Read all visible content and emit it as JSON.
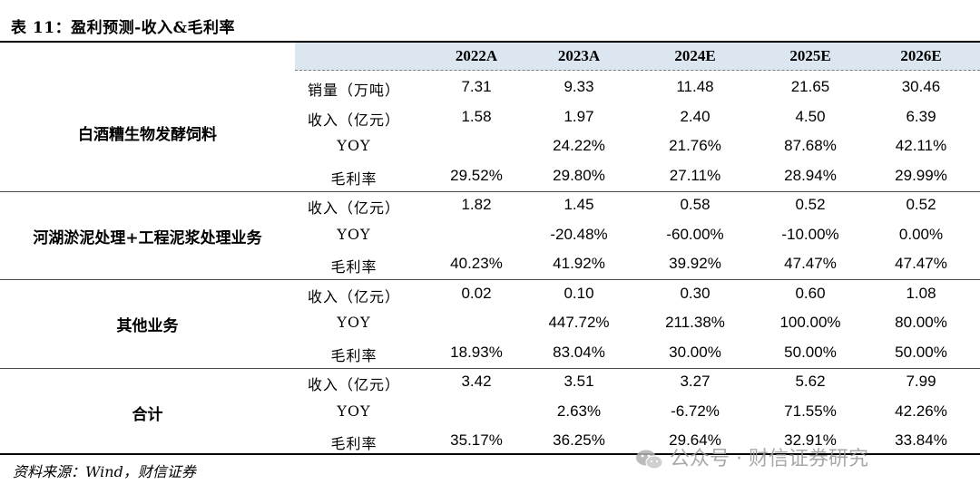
{
  "title": "表 11：盈利预测-收入&毛利率",
  "columns": [
    "2022A",
    "2023A",
    "2024E",
    "2025E",
    "2026E"
  ],
  "segments": [
    {
      "name": "白酒糟生物发酵饲料",
      "rows": [
        {
          "metric": "销量（万吨）",
          "values": [
            "7.31",
            "9.33",
            "11.48",
            "21.65",
            "30.46"
          ]
        },
        {
          "metric": "收入（亿元）",
          "values": [
            "1.58",
            "1.97",
            "2.40",
            "4.50",
            "6.39"
          ]
        },
        {
          "metric": "YOY",
          "values": [
            "",
            "24.22%",
            "21.76%",
            "87.68%",
            "42.11%"
          ]
        },
        {
          "metric": "毛利率",
          "values": [
            "29.52%",
            "29.80%",
            "27.11%",
            "28.94%",
            "29.99%"
          ]
        }
      ]
    },
    {
      "name": "河湖淤泥处理+工程泥浆处理业务",
      "rows": [
        {
          "metric": "收入（亿元）",
          "values": [
            "1.82",
            "1.45",
            "0.58",
            "0.52",
            "0.52"
          ]
        },
        {
          "metric": "YOY",
          "values": [
            "",
            "-20.48%",
            "-60.00%",
            "-10.00%",
            "0.00%"
          ]
        },
        {
          "metric": "毛利率",
          "values": [
            "40.23%",
            "41.92%",
            "39.92%",
            "47.47%",
            "47.47%"
          ]
        }
      ]
    },
    {
      "name": "其他业务",
      "rows": [
        {
          "metric": "收入（亿元）",
          "values": [
            "0.02",
            "0.10",
            "0.30",
            "0.60",
            "1.08"
          ]
        },
        {
          "metric": "YOY",
          "values": [
            "",
            "447.72%",
            "211.38%",
            "100.00%",
            "80.00%"
          ]
        },
        {
          "metric": "毛利率",
          "values": [
            "18.93%",
            "83.04%",
            "30.00%",
            "50.00%",
            "50.00%"
          ]
        }
      ]
    },
    {
      "name": "合计",
      "rows": [
        {
          "metric": "收入（亿元）",
          "values": [
            "3.42",
            "3.51",
            "3.27",
            "5.62",
            "7.99"
          ]
        },
        {
          "metric": "YOY",
          "values": [
            "",
            "2.63%",
            "-6.72%",
            "71.55%",
            "42.26%"
          ]
        },
        {
          "metric": "毛利率",
          "values": [
            "35.17%",
            "36.25%",
            "29.64%",
            "32.91%",
            "33.84%"
          ]
        }
      ]
    }
  ],
  "source": "资料来源：Wind，财信证券",
  "watermark": "公众号 · 财信证券研究",
  "colors": {
    "header_bg": "#dce6f1",
    "watermark": "#9a9a9a"
  }
}
